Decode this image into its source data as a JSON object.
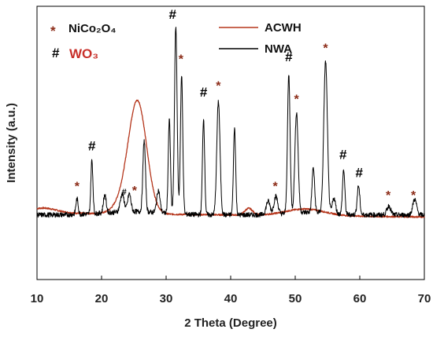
{
  "chart_data": {
    "type": "line",
    "title": "",
    "xlabel": "2 Theta (Degree)",
    "ylabel": "Intensity (a.u.)",
    "xlim": [
      10,
      70
    ],
    "ylim": [
      0,
      100
    ],
    "xticks": [
      "10",
      "20",
      "30",
      "40",
      "50",
      "60",
      "70"
    ],
    "yticks_shown": false,
    "grid": false,
    "phase_legend": [
      {
        "marker": "*",
        "label": "NiCo₂O₄",
        "color": "#8b2a16"
      },
      {
        "marker": "#",
        "label": "WO₃",
        "color": "#c8302a"
      }
    ],
    "legend_position": "top-right",
    "series": [
      {
        "name": "ACWH",
        "color": "#b5361c",
        "baseline": 17,
        "peaks": [
          {
            "x": 25.6,
            "h": 49,
            "w": 1.4
          },
          {
            "x": 23.5,
            "h": 5,
            "w": 1.5
          },
          {
            "x": 42.8,
            "h": 3,
            "w": 0.6
          },
          {
            "x": 51.5,
            "h": 3,
            "w": 3.0
          }
        ]
      },
      {
        "name": "NWA",
        "color": "#000000",
        "baseline": 17,
        "peaks": [
          {
            "x": 16.2,
            "h": 7,
            "w": 0.18
          },
          {
            "x": 18.5,
            "h": 24,
            "w": 0.16
          },
          {
            "x": 20.5,
            "h": 8,
            "w": 0.22
          },
          {
            "x": 23.2,
            "h": 8,
            "w": 0.3
          },
          {
            "x": 24.3,
            "h": 8,
            "w": 0.25
          },
          {
            "x": 26.6,
            "h": 32,
            "w": 0.2
          },
          {
            "x": 28.8,
            "h": 10,
            "w": 0.25
          },
          {
            "x": 30.5,
            "h": 42,
            "w": 0.17
          },
          {
            "x": 31.5,
            "h": 84,
            "w": 0.2
          },
          {
            "x": 32.4,
            "h": 62,
            "w": 0.18
          },
          {
            "x": 35.8,
            "h": 43,
            "w": 0.17
          },
          {
            "x": 38.1,
            "h": 51,
            "w": 0.25
          },
          {
            "x": 40.6,
            "h": 39,
            "w": 0.17
          },
          {
            "x": 45.8,
            "h": 6,
            "w": 0.3
          },
          {
            "x": 47.0,
            "h": 8,
            "w": 0.3
          },
          {
            "x": 49.0,
            "h": 62,
            "w": 0.2
          },
          {
            "x": 50.2,
            "h": 45,
            "w": 0.25
          },
          {
            "x": 52.8,
            "h": 20,
            "w": 0.2
          },
          {
            "x": 54.7,
            "h": 68,
            "w": 0.28
          },
          {
            "x": 56.0,
            "h": 7,
            "w": 0.25
          },
          {
            "x": 57.5,
            "h": 20,
            "w": 0.18
          },
          {
            "x": 59.8,
            "h": 13,
            "w": 0.2
          },
          {
            "x": 64.5,
            "h": 4,
            "w": 0.3
          },
          {
            "x": 68.5,
            "h": 7,
            "w": 0.3
          }
        ]
      }
    ],
    "annotations": [
      {
        "text": "#",
        "x": 18.5,
        "y": 46,
        "kind": "hash"
      },
      {
        "text": "*",
        "x": 16.2,
        "y": 28,
        "kind": "star"
      },
      {
        "text": "#",
        "x": 23.5,
        "y": 26,
        "kind": "hash-small"
      },
      {
        "text": "*",
        "x": 25.1,
        "y": 26,
        "kind": "star"
      },
      {
        "text": "#",
        "x": 31.0,
        "y": 105,
        "kind": "hash"
      },
      {
        "text": "*",
        "x": 32.3,
        "y": 85,
        "kind": "star"
      },
      {
        "text": "#",
        "x": 35.8,
        "y": 70,
        "kind": "hash"
      },
      {
        "text": "*",
        "x": 38.1,
        "y": 73,
        "kind": "star"
      },
      {
        "text": "*",
        "x": 46.9,
        "y": 28,
        "kind": "star"
      },
      {
        "text": "#",
        "x": 49.0,
        "y": 86,
        "kind": "hash"
      },
      {
        "text": "*",
        "x": 50.2,
        "y": 67,
        "kind": "star"
      },
      {
        "text": "*",
        "x": 54.7,
        "y": 90,
        "kind": "star"
      },
      {
        "text": "#",
        "x": 57.4,
        "y": 42,
        "kind": "hash"
      },
      {
        "text": "#",
        "x": 59.9,
        "y": 34,
        "kind": "hash"
      },
      {
        "text": "*",
        "x": 64.4,
        "y": 24,
        "kind": "star"
      },
      {
        "text": "*",
        "x": 68.3,
        "y": 24,
        "kind": "star"
      }
    ]
  }
}
